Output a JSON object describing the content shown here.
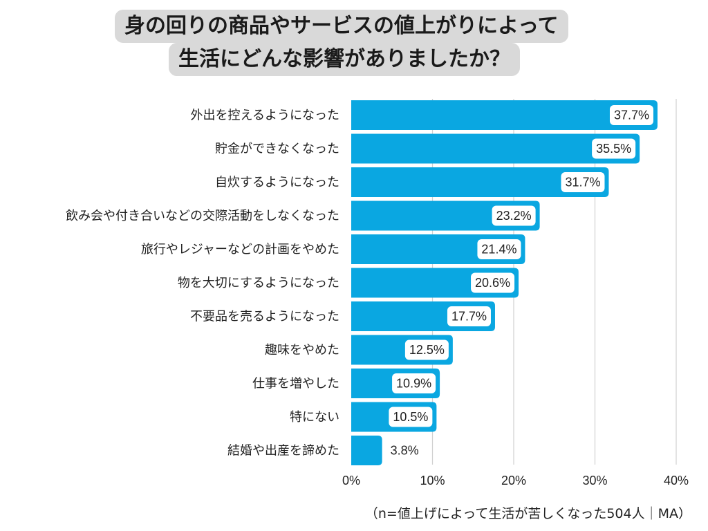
{
  "chart_data": {
    "type": "bar",
    "orientation": "horizontal",
    "title": [
      "身の回りの商品やサービスの値上がりによって",
      "生活にどんな影響がありましたか？"
    ],
    "categories": [
      "外出を控えるようになった",
      "貯金ができなくなった",
      "自炊するようになった",
      "飲み会や付き合いなどの交際活動をしなくなった",
      "旅行やレジャーなどの計画をやめた",
      "物を大切にするようになった",
      "不要品を売るようになった",
      "趣味をやめた",
      "仕事を増やした",
      "特にない",
      "結婚や出産を諦めた"
    ],
    "values": [
      37.7,
      35.5,
      31.7,
      23.2,
      21.4,
      20.6,
      17.7,
      12.5,
      10.9,
      10.5,
      3.8
    ],
    "value_labels": [
      "37.7%",
      "35.5%",
      "31.7%",
      "23.2%",
      "21.4%",
      "20.6%",
      "17.7%",
      "12.5%",
      "10.9%",
      "10.5%",
      "3.8%"
    ],
    "xlim": [
      0,
      40
    ],
    "x_ticks": [
      "0%",
      "10%",
      "20%",
      "30%",
      "40%"
    ],
    "x_tick_values": [
      0,
      10,
      20,
      30,
      40
    ],
    "grid": true,
    "bar_color": "#0aa7e1",
    "footnote": "（n=値上げによって生活が苦しくなった504人｜MA）"
  }
}
